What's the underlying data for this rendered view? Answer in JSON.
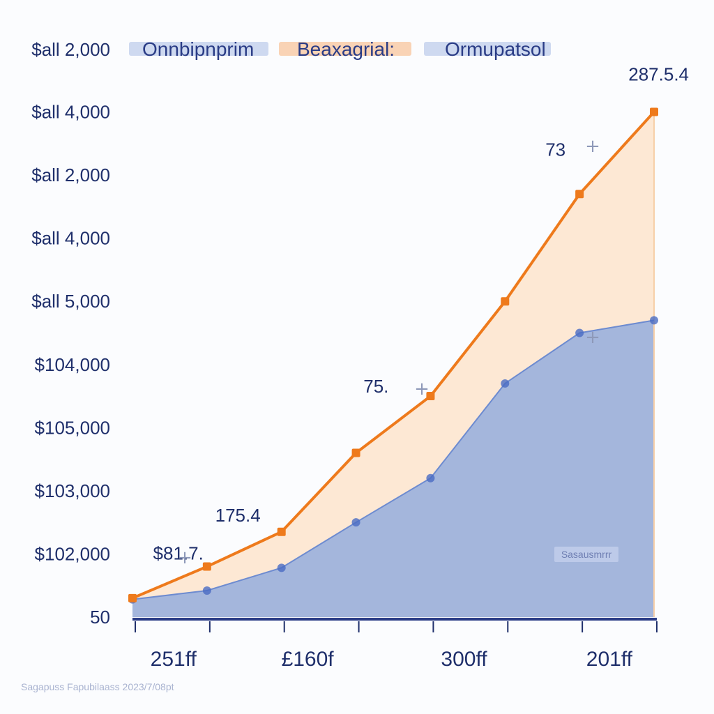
{
  "chart_data": {
    "type": "area",
    "title": "",
    "xlabel": "",
    "ylabel": "",
    "legend": {
      "position": "top",
      "entries": [
        "Onnbipnprim",
        "Beaxagrial:",
        "Ormupatsol"
      ]
    },
    "x_tick_labels": [
      "251ff",
      "£160f",
      "300ff",
      "201ff"
    ],
    "y_tick_labels": [
      "$all 2,000",
      "$all 4,000",
      "$all 2,000",
      "$all 4,000",
      "$all 5,000",
      "$104,000",
      "$105,000",
      "$103,000",
      "$102,000",
      "50"
    ],
    "y_tick_positions": [
      9,
      8,
      7,
      6,
      5,
      4,
      3,
      2,
      1,
      0
    ],
    "ylim": [
      0,
      9
    ],
    "x": [
      0,
      1,
      2,
      3,
      4,
      5,
      6,
      7
    ],
    "series": [
      {
        "name": "Onnbipnprim",
        "values": [
          0.28,
          0.42,
          0.78,
          1.5,
          2.2,
          3.7,
          4.5,
          4.7
        ],
        "color": "#4a6cc3",
        "fill": "#9fb3dc"
      },
      {
        "name": "Beaxagrial:",
        "values": [
          0.3,
          0.8,
          1.35,
          2.6,
          3.5,
          5.0,
          6.7,
          8.0
        ],
        "color": "#ee7a1c",
        "fill": "#fde8d4"
      }
    ],
    "data_labels": [
      {
        "text": "$81.7.",
        "series": 1,
        "index": 1
      },
      {
        "text": "175.4",
        "series": 1,
        "index": 2
      },
      {
        "text": "75.",
        "series": 1,
        "index": 4
      },
      {
        "text": "73",
        "series": 1,
        "index": 6
      },
      {
        "text": "287.5.4",
        "series": 1,
        "index": 7
      }
    ],
    "annotation": "Sasausmrrr",
    "grid": false,
    "footer": "Sagapuss Fapubilaass 2023/7/08pt"
  }
}
